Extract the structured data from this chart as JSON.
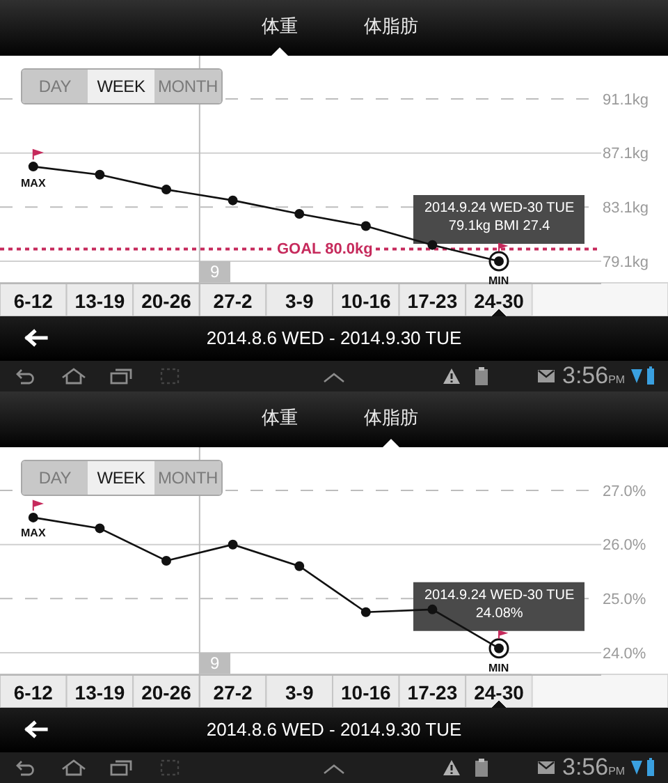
{
  "chart_data": [
    {
      "type": "line",
      "title": "体重",
      "categories": [
        "6-12",
        "13-19",
        "20-26",
        "27-2",
        "3-9",
        "10-16",
        "17-23",
        "24-30"
      ],
      "series": [
        {
          "color": "#111111",
          "values": [
            86.1,
            85.5,
            84.4,
            83.6,
            82.6,
            81.7,
            80.3,
            79.1
          ]
        }
      ],
      "ylim": [
        77.5,
        94.3
      ],
      "yticks": [
        {
          "value": 79.1,
          "label": "79.1kg"
        },
        {
          "value": 83.1,
          "label": "83.1kg"
        },
        {
          "value": 87.1,
          "label": "87.1kg"
        },
        {
          "value": 91.1,
          "label": "91.1kg"
        }
      ],
      "grid": "y",
      "marker": "circle",
      "ref_lines": [
        {
          "axis": "y",
          "value": 80.0,
          "label": "GOAL 80.0kg",
          "color": "#c62a5c",
          "line_style": "dotted"
        },
        {
          "axis": "x",
          "value": "27-2",
          "label": "9",
          "color": "#bdbdbd"
        }
      ],
      "annotations": [
        "体脂肪",
        "DAY",
        "WEEK",
        "MONTH",
        "2014.8.6 WED - 2014.9.30 TUE",
        "3:56PM",
        {
          "text": "MAX",
          "x": "6-12",
          "y": 86.1
        },
        {
          "text": "MIN",
          "x": "24-30",
          "y": 79.1
        },
        {
          "text": "2014.9.24 WED-30 TUE\n79.1kg BMI 27.4",
          "x": "24-30",
          "y": 79.1
        }
      ]
    },
    {
      "type": "line",
      "title": "体脂肪",
      "categories": [
        "6-12",
        "13-19",
        "20-26",
        "27-2",
        "3-9",
        "10-16",
        "17-23",
        "24-30"
      ],
      "series": [
        {
          "color": "#111111",
          "values": [
            26.5,
            26.3,
            25.7,
            26.0,
            25.6,
            24.75,
            24.8,
            24.08
          ]
        }
      ],
      "ylim": [
        23.6,
        27.8
      ],
      "yticks": [
        {
          "value": 24.0,
          "label": "24.0%"
        },
        {
          "value": 25.0,
          "label": "25.0%"
        },
        {
          "value": 26.0,
          "label": "26.0%"
        },
        {
          "value": 27.0,
          "label": "27.0%"
        }
      ],
      "grid": "y",
      "marker": "circle",
      "ref_lines": [
        {
          "axis": "x",
          "value": "27-2",
          "label": "9",
          "color": "#bdbdbd"
        }
      ],
      "annotations": [
        "体重",
        "DAY",
        "WEEK",
        "MONTH",
        "2014.8.6 WED - 2014.9.30 TUE",
        "3:56PM",
        {
          "text": "MAX",
          "x": "6-12",
          "y": 26.5
        },
        {
          "text": "MIN",
          "x": "24-30",
          "y": 24.08
        },
        {
          "text": "2014.9.24 WED-30 TUE\n24.08%",
          "x": "24-30",
          "y": 24.08
        }
      ]
    }
  ]
}
